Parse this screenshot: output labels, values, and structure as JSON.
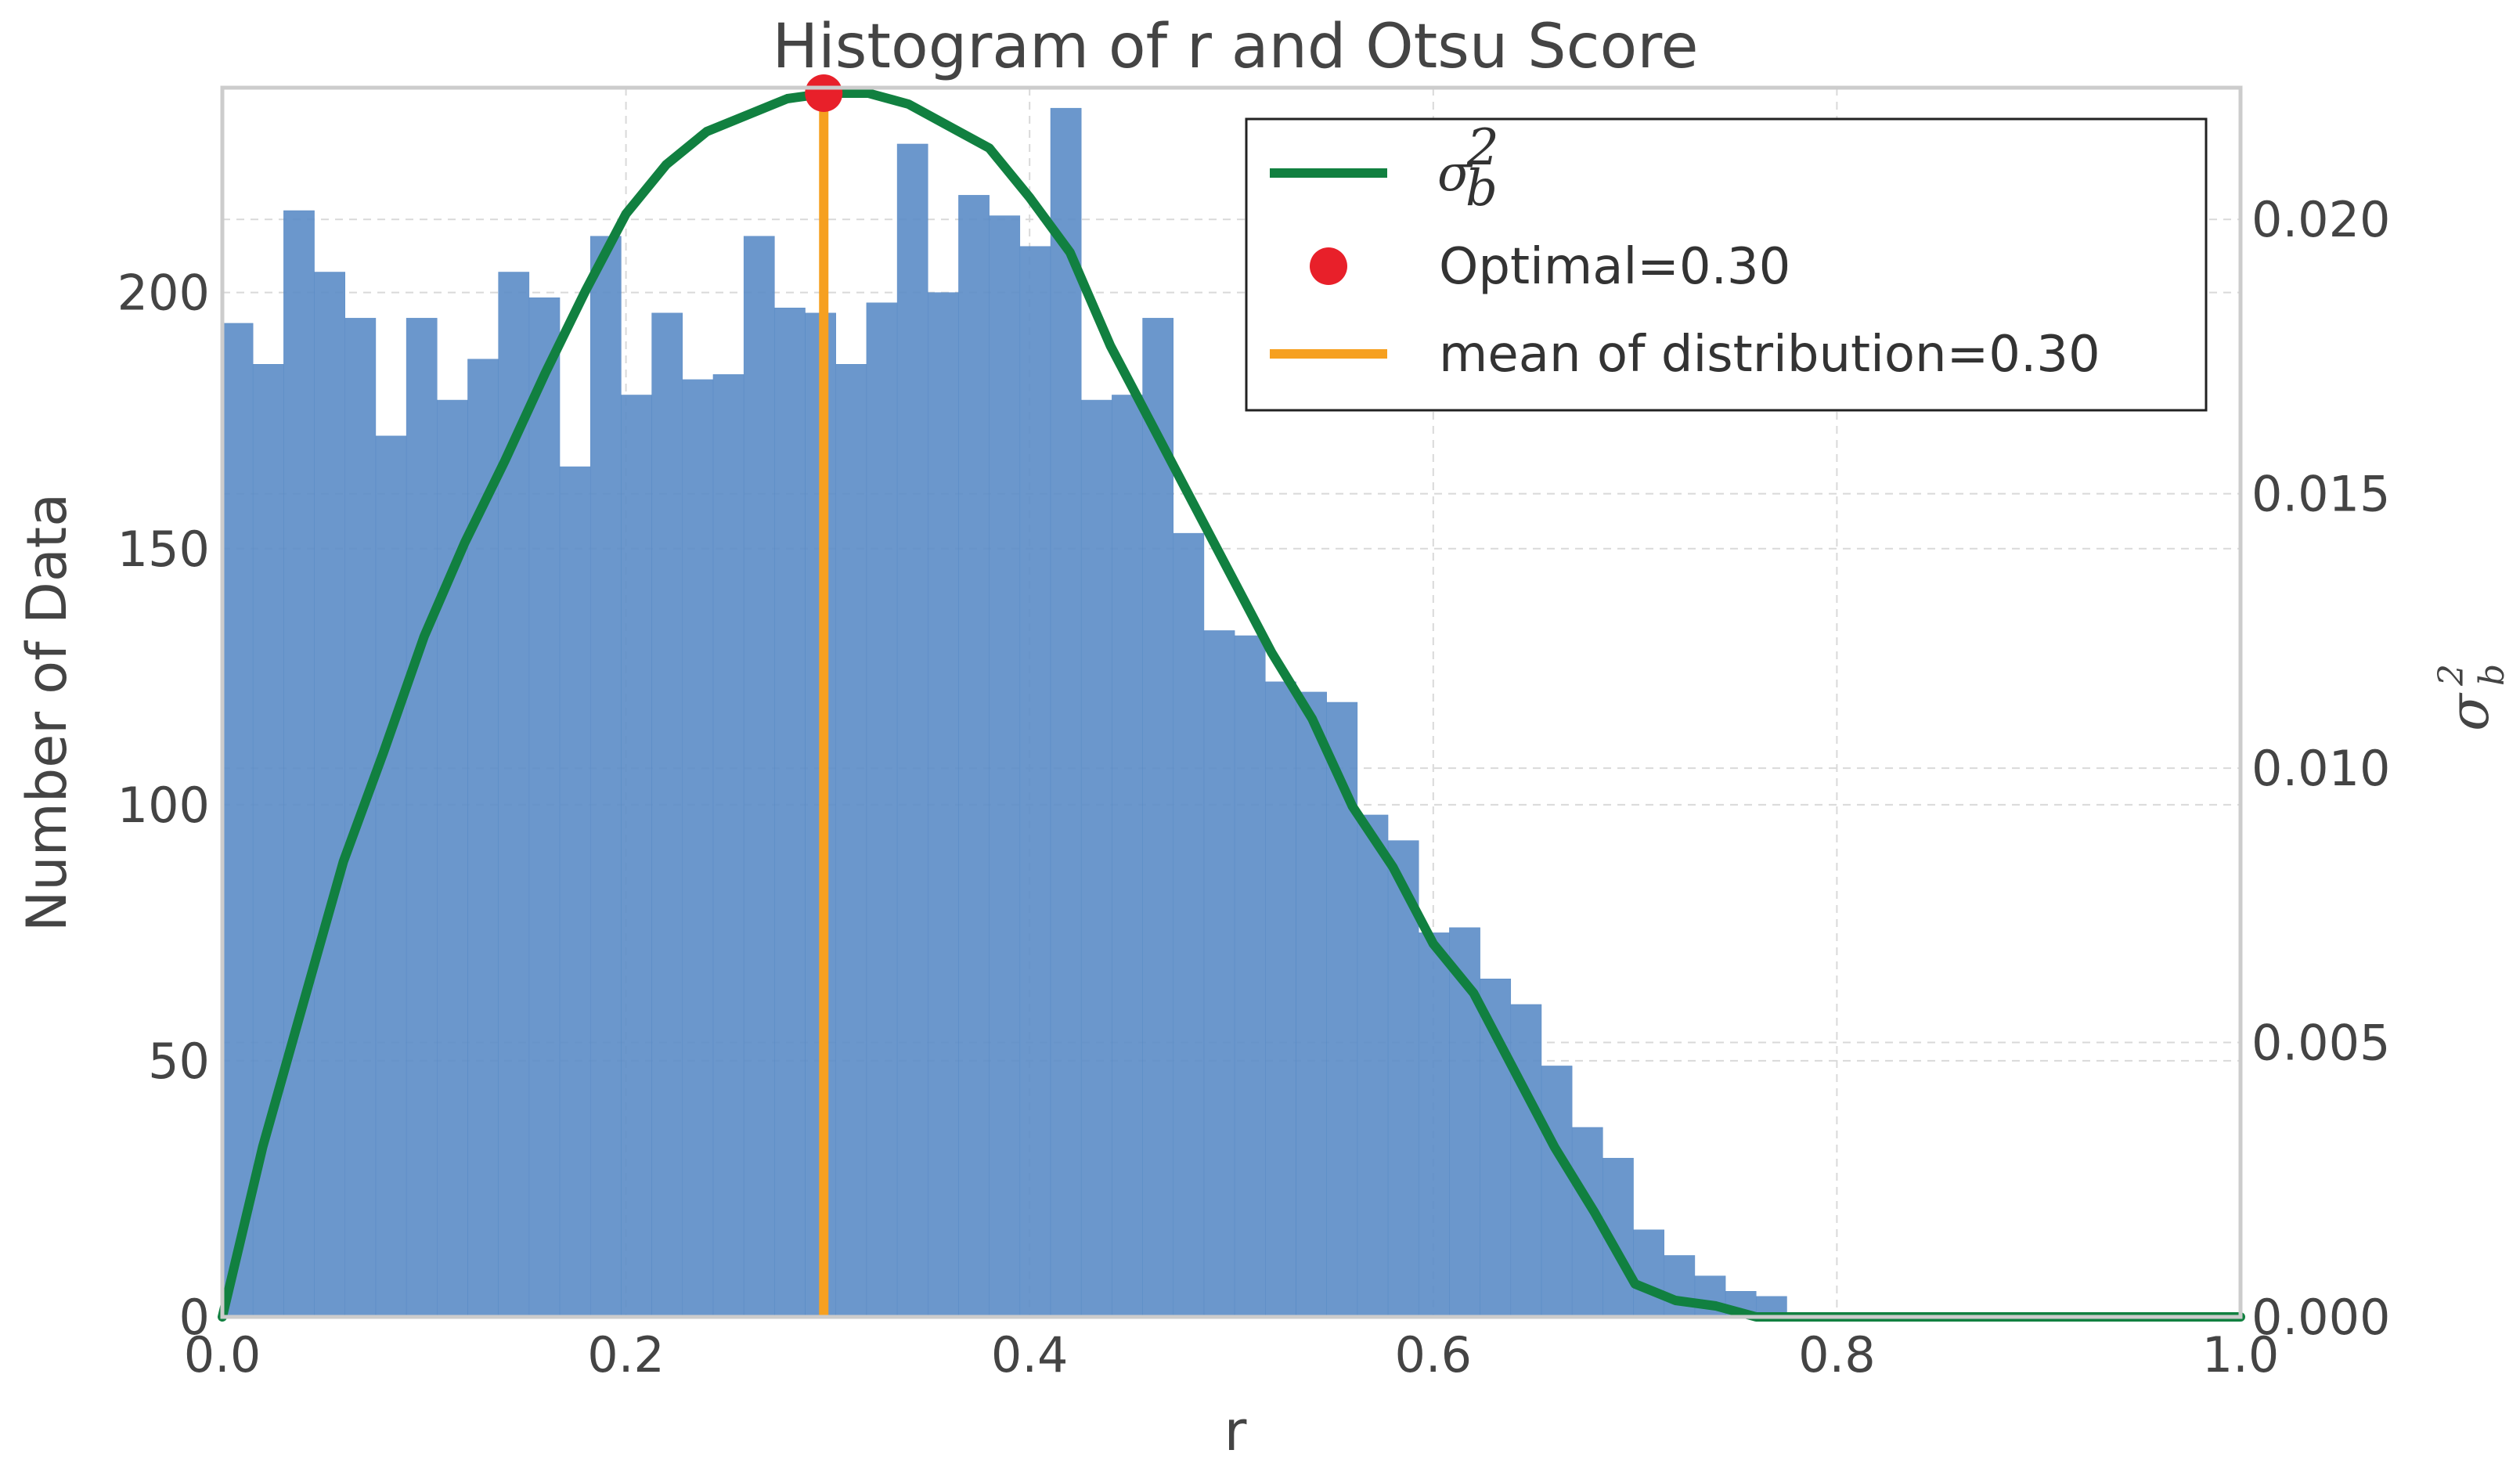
{
  "chart_data": {
    "type": "bar",
    "title": "Histogram of r and Otsu Score",
    "xlabel": "r",
    "ylabel": "Number of Data",
    "y2label": "σ_b^2",
    "xlim": [
      0.0,
      1.0
    ],
    "ylim": [
      0,
      240
    ],
    "y2lim": [
      0.0,
      0.0224
    ],
    "x_ticks": [
      "0.0",
      "0.2",
      "0.4",
      "0.6",
      "0.8",
      "1.0"
    ],
    "y_ticks": [
      "0",
      "50",
      "100",
      "150",
      "200"
    ],
    "y2_ticks": [
      "0.000",
      "0.005",
      "0.010",
      "0.015",
      "0.020"
    ],
    "grid": true,
    "legend_position": "top-right",
    "colors": {
      "bars": "#5b8cc6",
      "curve": "#118040",
      "optimal_point": "#e8202a",
      "mean_line": "#f6a020",
      "grid": "#d9d9d9",
      "frame": "#cccccc"
    },
    "histogram": {
      "bin_width": 0.0152,
      "bin_start": 0.0,
      "counts": [
        194,
        186,
        216,
        204,
        195,
        172,
        195,
        179,
        187,
        204,
        199,
        166,
        211,
        180,
        196,
        183,
        184,
        211,
        197,
        196,
        186,
        198,
        229,
        200,
        219,
        215,
        209,
        236,
        179,
        180,
        195,
        153,
        134,
        133,
        124,
        122,
        120,
        98,
        93,
        75,
        76,
        66,
        61,
        49,
        37,
        31,
        17,
        12,
        8,
        5,
        4
      ]
    },
    "series": [
      {
        "name": "σ_b^2",
        "type": "line",
        "axis": "right",
        "x": [
          0.0,
          0.02,
          0.04,
          0.06,
          0.08,
          0.1,
          0.12,
          0.14,
          0.16,
          0.18,
          0.2,
          0.22,
          0.24,
          0.26,
          0.28,
          0.3,
          0.32,
          0.34,
          0.36,
          0.38,
          0.4,
          0.42,
          0.44,
          0.46,
          0.48,
          0.5,
          0.52,
          0.54,
          0.56,
          0.58,
          0.6,
          0.62,
          0.64,
          0.66,
          0.68,
          0.7,
          0.72,
          0.74,
          0.76,
          0.8,
          0.9,
          1.0
        ],
        "y": [
          0.0,
          0.0031,
          0.0057,
          0.0083,
          0.0103,
          0.0124,
          0.0141,
          0.0156,
          0.0172,
          0.0187,
          0.0201,
          0.021,
          0.0216,
          0.0219,
          0.0222,
          0.0223,
          0.0223,
          0.0221,
          0.0217,
          0.0213,
          0.0204,
          0.0194,
          0.0177,
          0.0163,
          0.0149,
          0.0135,
          0.0121,
          0.0109,
          0.0093,
          0.0082,
          0.0068,
          0.0059,
          0.0045,
          0.0031,
          0.0019,
          0.0006,
          0.0003,
          0.0002,
          0.0,
          0.0,
          0.0,
          0.0
        ]
      },
      {
        "name": "Optimal=0.30",
        "type": "point",
        "axis": "right",
        "x": 0.298,
        "y": 0.0223
      },
      {
        "name": "mean of distribution=0.30",
        "type": "vline",
        "x": 0.298
      }
    ]
  }
}
